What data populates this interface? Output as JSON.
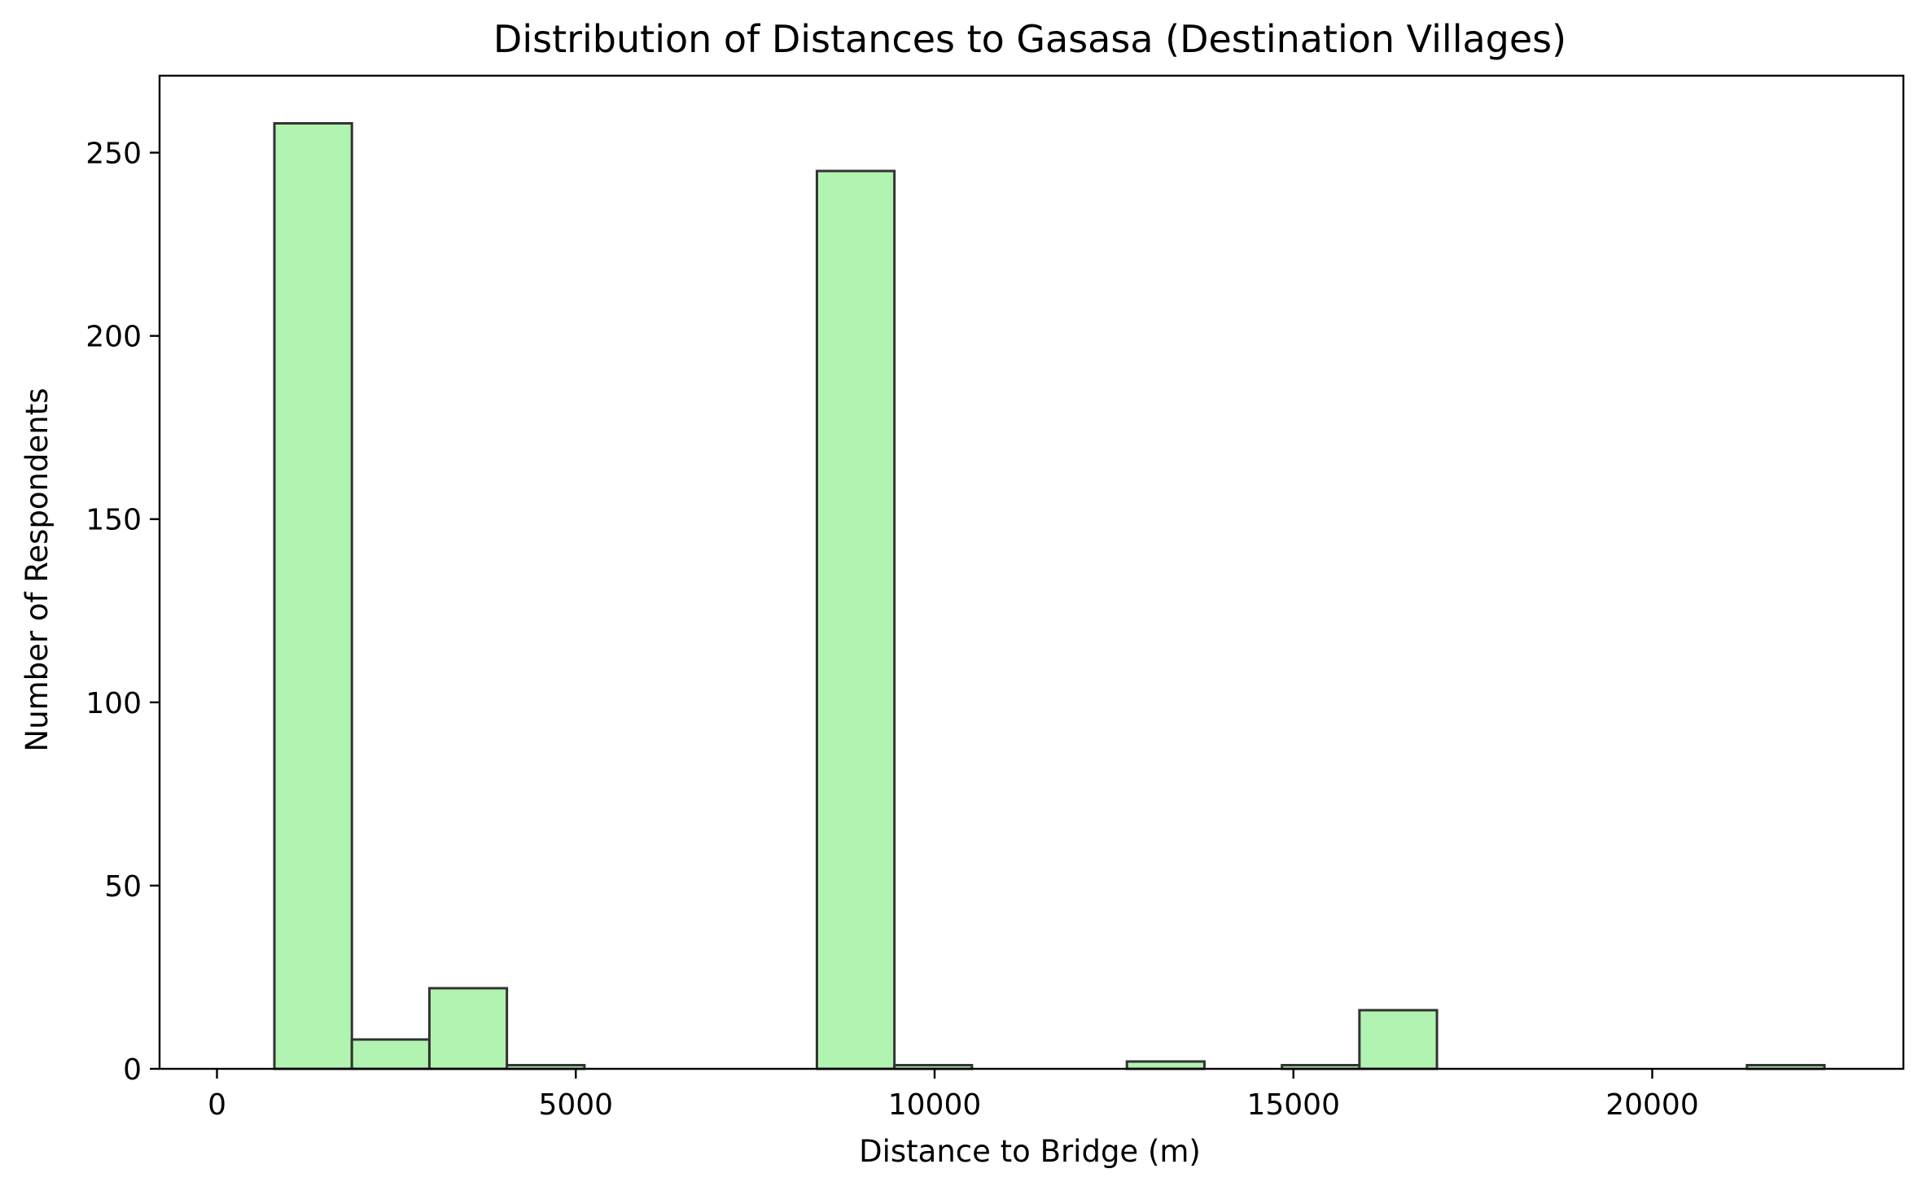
{
  "chart_data": {
    "type": "bar",
    "title": "Distribution of Distances to Gasasa (Destination Villages)",
    "xlabel": "Distance to Bridge (m)",
    "ylabel": "Number of Respondents",
    "xlim": [
      -800,
      23500
    ],
    "ylim": [
      0,
      271
    ],
    "x_ticks": [
      0,
      5000,
      10000,
      15000,
      20000
    ],
    "y_ticks": [
      0,
      50,
      100,
      150,
      200,
      250
    ],
    "grid": false,
    "legend": "none",
    "bar_color": "#b1f4b1",
    "edge_color": "#333333",
    "bins": [
      {
        "x0": 800,
        "x1": 1880,
        "count": 258
      },
      {
        "x0": 1880,
        "x1": 2960,
        "count": 8
      },
      {
        "x0": 2960,
        "x1": 4040,
        "count": 22
      },
      {
        "x0": 4040,
        "x1": 5120,
        "count": 1
      },
      {
        "x0": 5120,
        "x1": 6200,
        "count": 0
      },
      {
        "x0": 6200,
        "x1": 7280,
        "count": 0
      },
      {
        "x0": 7280,
        "x1": 8360,
        "count": 0
      },
      {
        "x0": 8360,
        "x1": 9440,
        "count": 245
      },
      {
        "x0": 9440,
        "x1": 10520,
        "count": 1
      },
      {
        "x0": 10520,
        "x1": 11600,
        "count": 0
      },
      {
        "x0": 11600,
        "x1": 12680,
        "count": 0
      },
      {
        "x0": 12680,
        "x1": 13760,
        "count": 2
      },
      {
        "x0": 13760,
        "x1": 14840,
        "count": 0
      },
      {
        "x0": 14840,
        "x1": 15920,
        "count": 1
      },
      {
        "x0": 15920,
        "x1": 17000,
        "count": 16
      },
      {
        "x0": 17000,
        "x1": 18080,
        "count": 0
      },
      {
        "x0": 18080,
        "x1": 19160,
        "count": 0
      },
      {
        "x0": 19160,
        "x1": 20240,
        "count": 0
      },
      {
        "x0": 20240,
        "x1": 21320,
        "count": 0
      },
      {
        "x0": 21320,
        "x1": 22400,
        "count": 1
      }
    ]
  }
}
